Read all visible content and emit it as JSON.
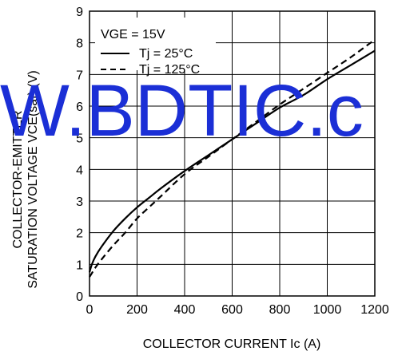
{
  "chart_data": {
    "type": "line",
    "title": "",
    "xlabel": "COLLECTOR CURRENT Ic (A)",
    "ylabel_line1": "COLLECTOR-EMITTER",
    "ylabel_line2": "SATURATION VOLTAGE VCE(sat) (V)",
    "xlim": [
      0,
      1200
    ],
    "ylim": [
      0,
      9
    ],
    "xticks": [
      0,
      200,
      400,
      600,
      800,
      1000,
      1200
    ],
    "yticks": [
      0,
      1,
      2,
      3,
      4,
      5,
      6,
      7,
      8,
      9
    ],
    "grid": true,
    "legend_placement": "top-left",
    "condition": "VGE = 15V",
    "series": [
      {
        "name": "Tj = 25°C",
        "style": "solid",
        "color": "#000000",
        "x": [
          0,
          10,
          25,
          50,
          100,
          150,
          200,
          250,
          300,
          400,
          500,
          600,
          700,
          800,
          900,
          1000,
          1100,
          1200
        ],
        "y": [
          0.75,
          1.0,
          1.25,
          1.55,
          2.05,
          2.45,
          2.8,
          3.1,
          3.4,
          3.95,
          4.45,
          4.95,
          5.45,
          5.95,
          6.35,
          6.85,
          7.3,
          7.75
        ]
      },
      {
        "name": "Tj = 125°C",
        "style": "dashed",
        "color": "#000000",
        "x": [
          0,
          10,
          25,
          50,
          100,
          150,
          200,
          250,
          300,
          400,
          500,
          600,
          700,
          800,
          900,
          1000,
          1100,
          1200
        ],
        "y": [
          0.6,
          0.72,
          0.9,
          1.15,
          1.6,
          2.0,
          2.45,
          2.8,
          3.15,
          3.85,
          4.4,
          4.95,
          5.5,
          6.05,
          6.55,
          7.05,
          7.55,
          8.1
        ]
      }
    ]
  },
  "watermark": {
    "text": "W.BDTIC.c",
    "color": "#1b2fd6"
  }
}
